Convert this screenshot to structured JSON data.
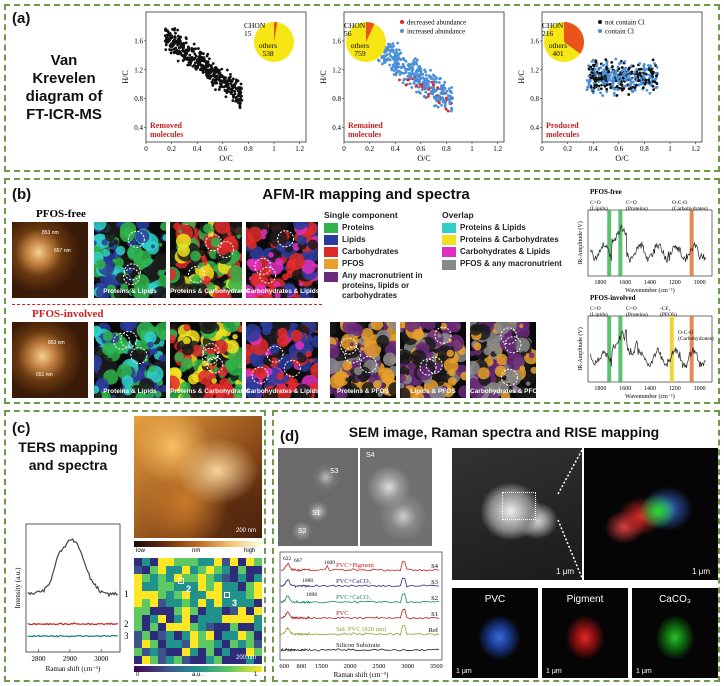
{
  "panel_a": {
    "label": "(a)",
    "title_lines": [
      "Van",
      "Krevelen",
      "diagram of",
      "FT-ICR-MS"
    ],
    "plots": [
      {
        "name": "removed",
        "corner_label": [
          "Removed",
          "molecules"
        ],
        "pie_small_label": "CHON",
        "pie_small_value": "15",
        "pie_big_label": "others",
        "pie_big_value": "538",
        "legend": []
      },
      {
        "name": "remained",
        "corner_label": [
          "Remained",
          "molecules"
        ],
        "pie_small_label": "CHON",
        "pie_small_value": "56",
        "pie_big_label": "others",
        "pie_big_value": "759",
        "legend": [
          "decreased abundance",
          "increased abundance"
        ]
      },
      {
        "name": "produced",
        "corner_label": [
          "Produced",
          "molecules"
        ],
        "pie_small_label": "CHON",
        "pie_small_value": "216",
        "pie_big_label": "others",
        "pie_big_value": "401",
        "legend": [
          "not contain Cl",
          "contain Cl"
        ]
      }
    ],
    "xlabel": "O/C",
    "ylabel": "H/C",
    "xticks": [
      "0",
      "0.2",
      "0.4",
      "0.6",
      "0.8",
      "1",
      "1.2"
    ],
    "yticks": [
      "0.4",
      "0.8",
      "1.2",
      "1.6"
    ],
    "colors": {
      "black": "#111111",
      "blue": "#4a90d9",
      "red": "#e02424",
      "pie_yellow": "#f5e614",
      "pie_orange": "#e8541c"
    }
  },
  "panel_b": {
    "label": "(b)",
    "title": "AFM-IR mapping and spectra",
    "row1_label": "PFOS-free",
    "row2_label": "PFOS-involved",
    "row1_captions": [
      "Proteins & Lipids",
      "Proteins & Carbohydrates",
      "Carbohydrates & Lipids"
    ],
    "row2_captions": [
      "Proteins & Lipids",
      "Proteins & Carbohydrates",
      "Carbohydrates & Lipids",
      "Proteins & PFOS",
      "Lipids & PFOS",
      "Carbohydrates & PFOS"
    ],
    "single_title": "Single component",
    "single_items": [
      {
        "label": "Proteins",
        "color": "#2fb34a"
      },
      {
        "label": "Lipids",
        "color": "#2a3c9c"
      },
      {
        "label": "Carbohydrates",
        "color": "#e02a2a"
      },
      {
        "label": "PFOS",
        "color": "#e8a02a"
      },
      {
        "label": "Any macronutrient in proteins, lipids or carbohydrates",
        "color": "#6a2a7a"
      }
    ],
    "overlap_title": "Overlap",
    "overlap_items": [
      {
        "label": "Proteins & Lipids",
        "color": "#2fd0c8"
      },
      {
        "label": "Proteins & Carbohydrates",
        "color": "#f0e020"
      },
      {
        "label": "Carbohydrates & Lipids",
        "color": "#e030c0"
      },
      {
        "label": "PFOS & any macronutrient",
        "color": "#888888"
      }
    ],
    "spectrum1": {
      "title": "PFOS-free",
      "ylabel": "IR-Amplitude (V)",
      "xlabel": "Wavenumber (cm⁻¹)",
      "ann": [
        "C=O (Lipids)",
        "C=O (Proteins)",
        "O-C-O (Carbohydrates)"
      ],
      "xticks": [
        "1800",
        "1600",
        "1400",
        "1200",
        "1000"
      ]
    },
    "spectrum2": {
      "title": "PFOS-involved",
      "ylabel": "IR-Amplitude (V)",
      "xlabel": "Wavenumber (cm⁻¹)",
      "ann": [
        "C=O (Lipids)",
        "C=O (Proteins)",
        "-CF₂ (PFOS)",
        "O-C-O (Carbohydrates)"
      ],
      "xticks": [
        "1800",
        "1600",
        "1400",
        "1200",
        "1000"
      ]
    },
    "afm_labels": [
      "853 nm",
      "657 nm",
      "853 nm",
      "651 nm"
    ]
  },
  "panel_c": {
    "label": "(c)",
    "title_lines": [
      "TERS mapping",
      "and spectra"
    ],
    "scale1": "200 nm",
    "scale2": "200 nm",
    "cbar1": {
      "low": "low",
      "unit": "nm",
      "high": "high"
    },
    "cbar2": {
      "min": "0",
      "unit": "a.u.",
      "max": "1"
    },
    "spec_ylabel": "Intensity (a.u.)",
    "spec_xlabel": "Raman shift (cm⁻¹)",
    "spec_xticks": [
      "2800",
      "2900",
      "3000"
    ],
    "curve_labels": [
      "1",
      "2",
      "3"
    ],
    "map_points": [
      "2",
      "3"
    ]
  },
  "panel_d": {
    "label": "(d)",
    "title": "SEM image, Raman spectra and RISE mapping",
    "sem_labels": [
      "S3",
      "S1",
      "S2",
      "S4"
    ],
    "raman_curves": [
      "PVC+Pigment",
      "PVC+CaCO₃",
      "PVC+CaCO₃",
      "PVC",
      "Std. PVC (820 nm)",
      "Silicon Substrate"
    ],
    "raman_right": [
      "S4",
      "S3",
      "S2",
      "S1",
      "Ref"
    ],
    "raman_peaks": [
      "622",
      "667",
      "1609",
      "1088",
      "1098"
    ],
    "raman_xlabel": "Raman shift (cm⁻¹)",
    "raman_xticks": [
      "600",
      "800",
      "1500",
      "2000",
      "2500",
      "3000",
      "3500"
    ],
    "scale": "1 μm",
    "maps": [
      {
        "label": "PVC",
        "color": "#3a6ad9"
      },
      {
        "label": "Pigment",
        "color": "#e02a2a"
      },
      {
        "label": "CaCO₃",
        "color": "#2ac02a"
      }
    ]
  }
}
